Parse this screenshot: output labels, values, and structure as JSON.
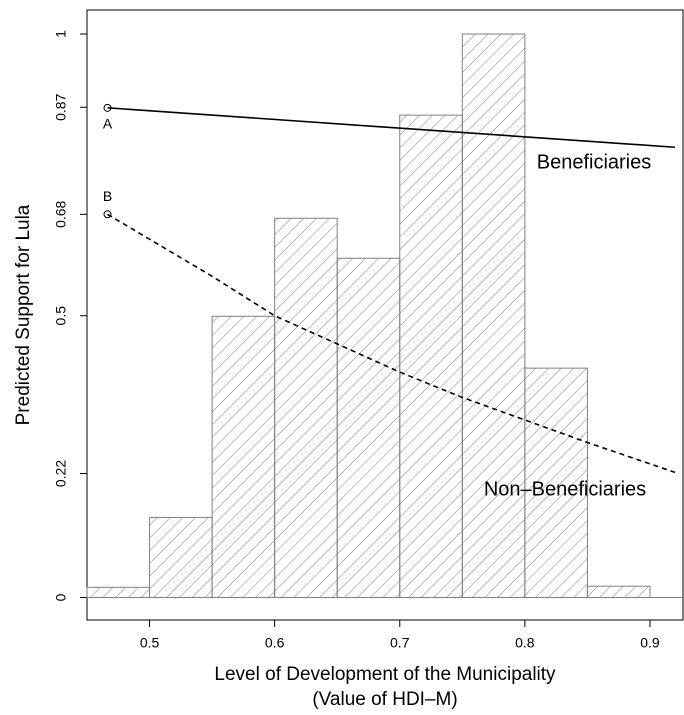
{
  "chart_data": {
    "type": "histogram",
    "ylabel": "Predicted Support for Lula",
    "xlabel": "Level of Development of the Municipality",
    "xlabel_sub": "(Value of HDI–M)",
    "bins": [
      0.45,
      0.5,
      0.55,
      0.6,
      0.65,
      0.7,
      0.75,
      0.8,
      0.85,
      0.9
    ],
    "counts": [
      0.018,
      0.142,
      0.499,
      0.673,
      0.602,
      0.856,
      1.0,
      0.407,
      0.02
    ],
    "bar_color": "#808080",
    "series": [
      {
        "name": "Beneficiaries",
        "color": "#000000",
        "dash": false,
        "x": [
          0.4664,
          0.92
        ],
        "values": [
          0.869,
          0.799
        ]
      },
      {
        "name": "Non–Beneficiaries",
        "color": "#000000",
        "dash": true,
        "x": [
          0.4664,
          0.55,
          0.6,
          0.65,
          0.7,
          0.75,
          0.8,
          0.85,
          0.92
        ],
        "values": [
          0.68,
          0.57,
          0.5,
          0.45,
          0.4,
          0.355,
          0.315,
          0.275,
          0.222
        ]
      }
    ],
    "annotations": [
      {
        "text": "A",
        "x": 0.4664,
        "y": 0.869
      },
      {
        "text": "B",
        "x": 0.4664,
        "y": 0.68
      }
    ],
    "xlim": [
      0.45,
      0.9264
    ],
    "ylim": [
      -0.04,
      1.0426
    ],
    "xticks": [
      0.5,
      0.6,
      0.7,
      0.8,
      0.9
    ],
    "yticks": [
      0,
      0.22,
      0.5,
      0.68,
      0.87,
      1
    ]
  }
}
